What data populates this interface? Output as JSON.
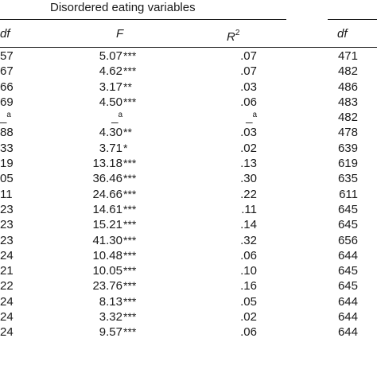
{
  "table": {
    "group_header": "Disordered eating variables",
    "columns": {
      "df_left": "df",
      "f": "F",
      "r2_base": "R",
      "r2_sup": "2",
      "df_right": "df"
    },
    "rows": [
      {
        "df": "57",
        "f": "5.07",
        "stars": "***",
        "r2": ".07",
        "df2": "471"
      },
      {
        "df": "67",
        "f": "4.62",
        "stars": "***",
        "r2": ".07",
        "df2": "482"
      },
      {
        "df": "66",
        "f": "3.17",
        "stars": "**",
        "r2": ".03",
        "df2": "486"
      },
      {
        "df": "69",
        "f": "4.50",
        "stars": "***",
        "r2": ".06",
        "df2": "483"
      },
      {
        "df": "_a",
        "f": "_a",
        "stars": "",
        "r2": "_a",
        "df2": "482"
      },
      {
        "df": "88",
        "f": "4.30",
        "stars": "**",
        "r2": ".03",
        "df2": "478"
      },
      {
        "df": "33",
        "f": "3.71",
        "stars": "*",
        "r2": ".02",
        "df2": "639"
      },
      {
        "df": "19",
        "f": "13.18",
        "stars": "***",
        "r2": ".13",
        "df2": "619"
      },
      {
        "df": "05",
        "f": "36.46",
        "stars": "***",
        "r2": ".30",
        "df2": "635"
      },
      {
        "df": "11",
        "f": "24.66",
        "stars": "***",
        "r2": ".22",
        "df2": "611"
      },
      {
        "df": "23",
        "f": "14.61",
        "stars": "***",
        "r2": ".11",
        "df2": "645"
      },
      {
        "df": "23",
        "f": "15.21",
        "stars": "***",
        "r2": ".14",
        "df2": "645"
      },
      {
        "df": "23",
        "f": "41.30",
        "stars": "***",
        "r2": ".32",
        "df2": "656"
      },
      {
        "df": "24",
        "f": "10.48",
        "stars": "***",
        "r2": ".06",
        "df2": "644"
      },
      {
        "df": "21",
        "f": "10.05",
        "stars": "***",
        "r2": ".10",
        "df2": "645"
      },
      {
        "df": "22",
        "f": "23.76",
        "stars": "***",
        "r2": ".16",
        "df2": "645"
      },
      {
        "df": "24",
        "f": "8.13",
        "stars": "***",
        "r2": ".05",
        "df2": "644"
      },
      {
        "df": "24",
        "f": "3.32",
        "stars": "***",
        "r2": ".02",
        "df2": "644"
      },
      {
        "df": "24",
        "f": "9.57",
        "stars": "***",
        "r2": ".06",
        "df2": "644"
      }
    ]
  }
}
